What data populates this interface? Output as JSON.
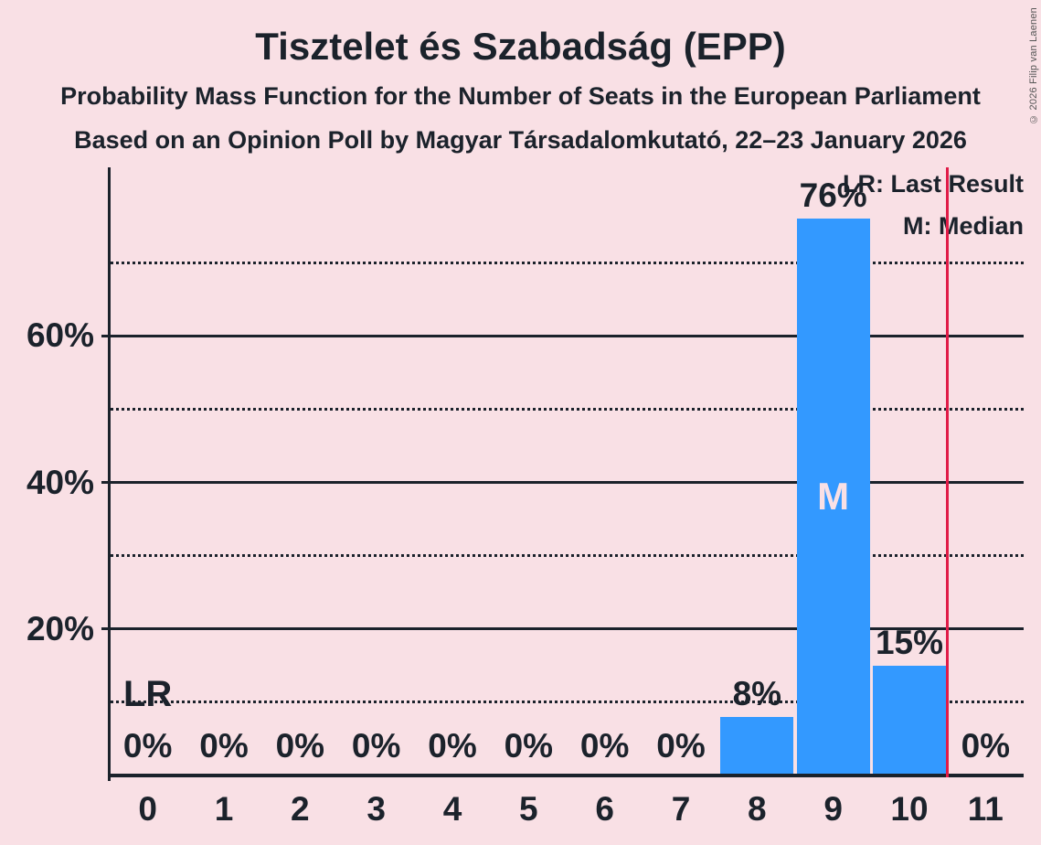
{
  "header": {
    "title": "Tisztelet és Szabadság (EPP)",
    "subtitle1": "Probability Mass Function for the Number of Seats in the European Parliament",
    "subtitle2": "Based on an Opinion Poll by Magyar Társadalomkutató, 22–23 January 2026",
    "copyright": "© 2026 Filip van Laenen"
  },
  "legend": {
    "last_result": "LR: Last Result",
    "median": "M: Median"
  },
  "chart_data": {
    "type": "bar",
    "title": "Tisztelet és Szabadság (EPP)",
    "categories": [
      "0",
      "1",
      "2",
      "3",
      "4",
      "5",
      "6",
      "7",
      "8",
      "9",
      "10",
      "11"
    ],
    "values": [
      0,
      0,
      0,
      0,
      0,
      0,
      0,
      0,
      8,
      76,
      15,
      0
    ],
    "value_labels": [
      "0%",
      "0%",
      "0%",
      "0%",
      "0%",
      "0%",
      "0%",
      "0%",
      "8%",
      "76%",
      "15%",
      "0%"
    ],
    "ylim": [
      0,
      83
    ],
    "ytick_values": [
      20,
      40,
      60
    ],
    "ytick_labels": [
      "20%",
      "40%",
      "60%"
    ],
    "grid_solid_values": [
      20,
      40,
      60
    ],
    "grid_dotted_values": [
      10,
      30,
      50,
      70
    ],
    "median_seat": 9,
    "median_marker": "M",
    "last_result_seat": 0,
    "last_result_marker": "LR",
    "red_line_at_seats": 10.5,
    "colors": {
      "bar": "#3399FF",
      "red_line": "#E01C48",
      "background": "#F9E0E5",
      "median_text": "#F9E0E5",
      "axis_text": "#1B222B"
    }
  }
}
